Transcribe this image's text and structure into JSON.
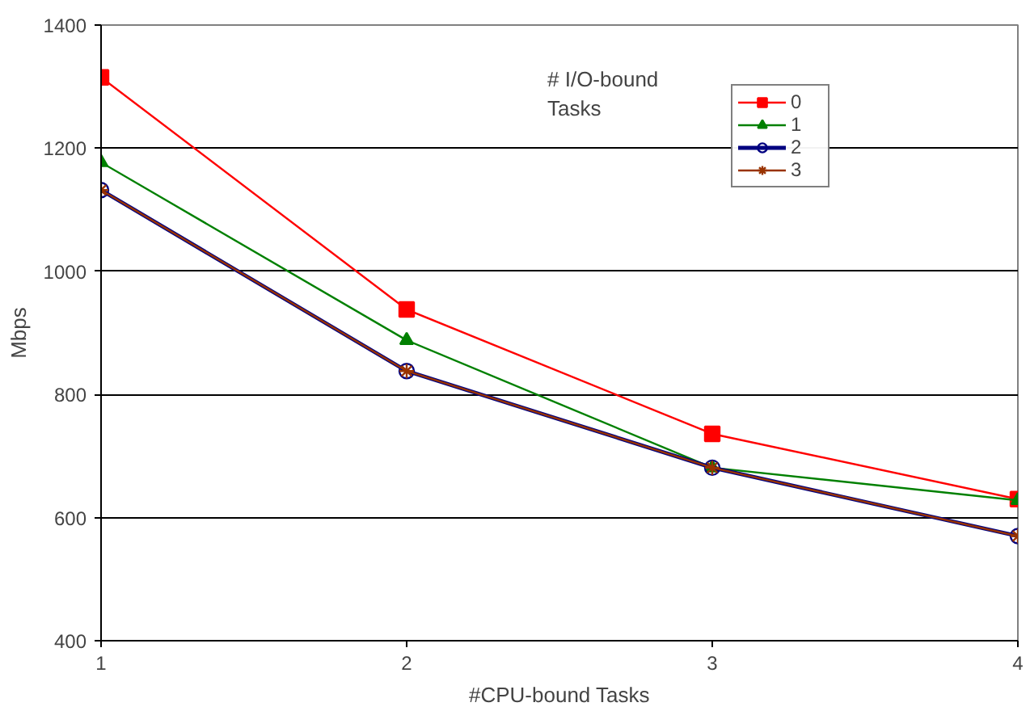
{
  "chart_data": {
    "type": "line",
    "xlabel": "#CPU-bound Tasks",
    "ylabel": "Mbps",
    "legend_title": "# I/O-bound Tasks",
    "x": [
      1,
      2,
      3,
      4
    ],
    "xlim": [
      1,
      4
    ],
    "xticks": [
      1,
      2,
      3,
      4
    ],
    "ylim": [
      400,
      1400
    ],
    "yticks": [
      400,
      600,
      800,
      1000,
      1200,
      1400
    ],
    "grid": "y",
    "legend": "top right",
    "line_style": "solid",
    "series": [
      {
        "name": "0",
        "color": "#ff0000",
        "marker": "square",
        "values": [
          1315,
          938,
          736,
          630
        ]
      },
      {
        "name": "1",
        "color": "#008000",
        "marker": "triangle",
        "values": [
          1177,
          888,
          681,
          628
        ]
      },
      {
        "name": "2",
        "color": "#000080",
        "marker": "circle",
        "values": [
          1132,
          838,
          681,
          570
        ]
      },
      {
        "name": "3",
        "color": "#993300",
        "marker": "cross",
        "values": [
          1132,
          838,
          681,
          570
        ]
      }
    ]
  }
}
